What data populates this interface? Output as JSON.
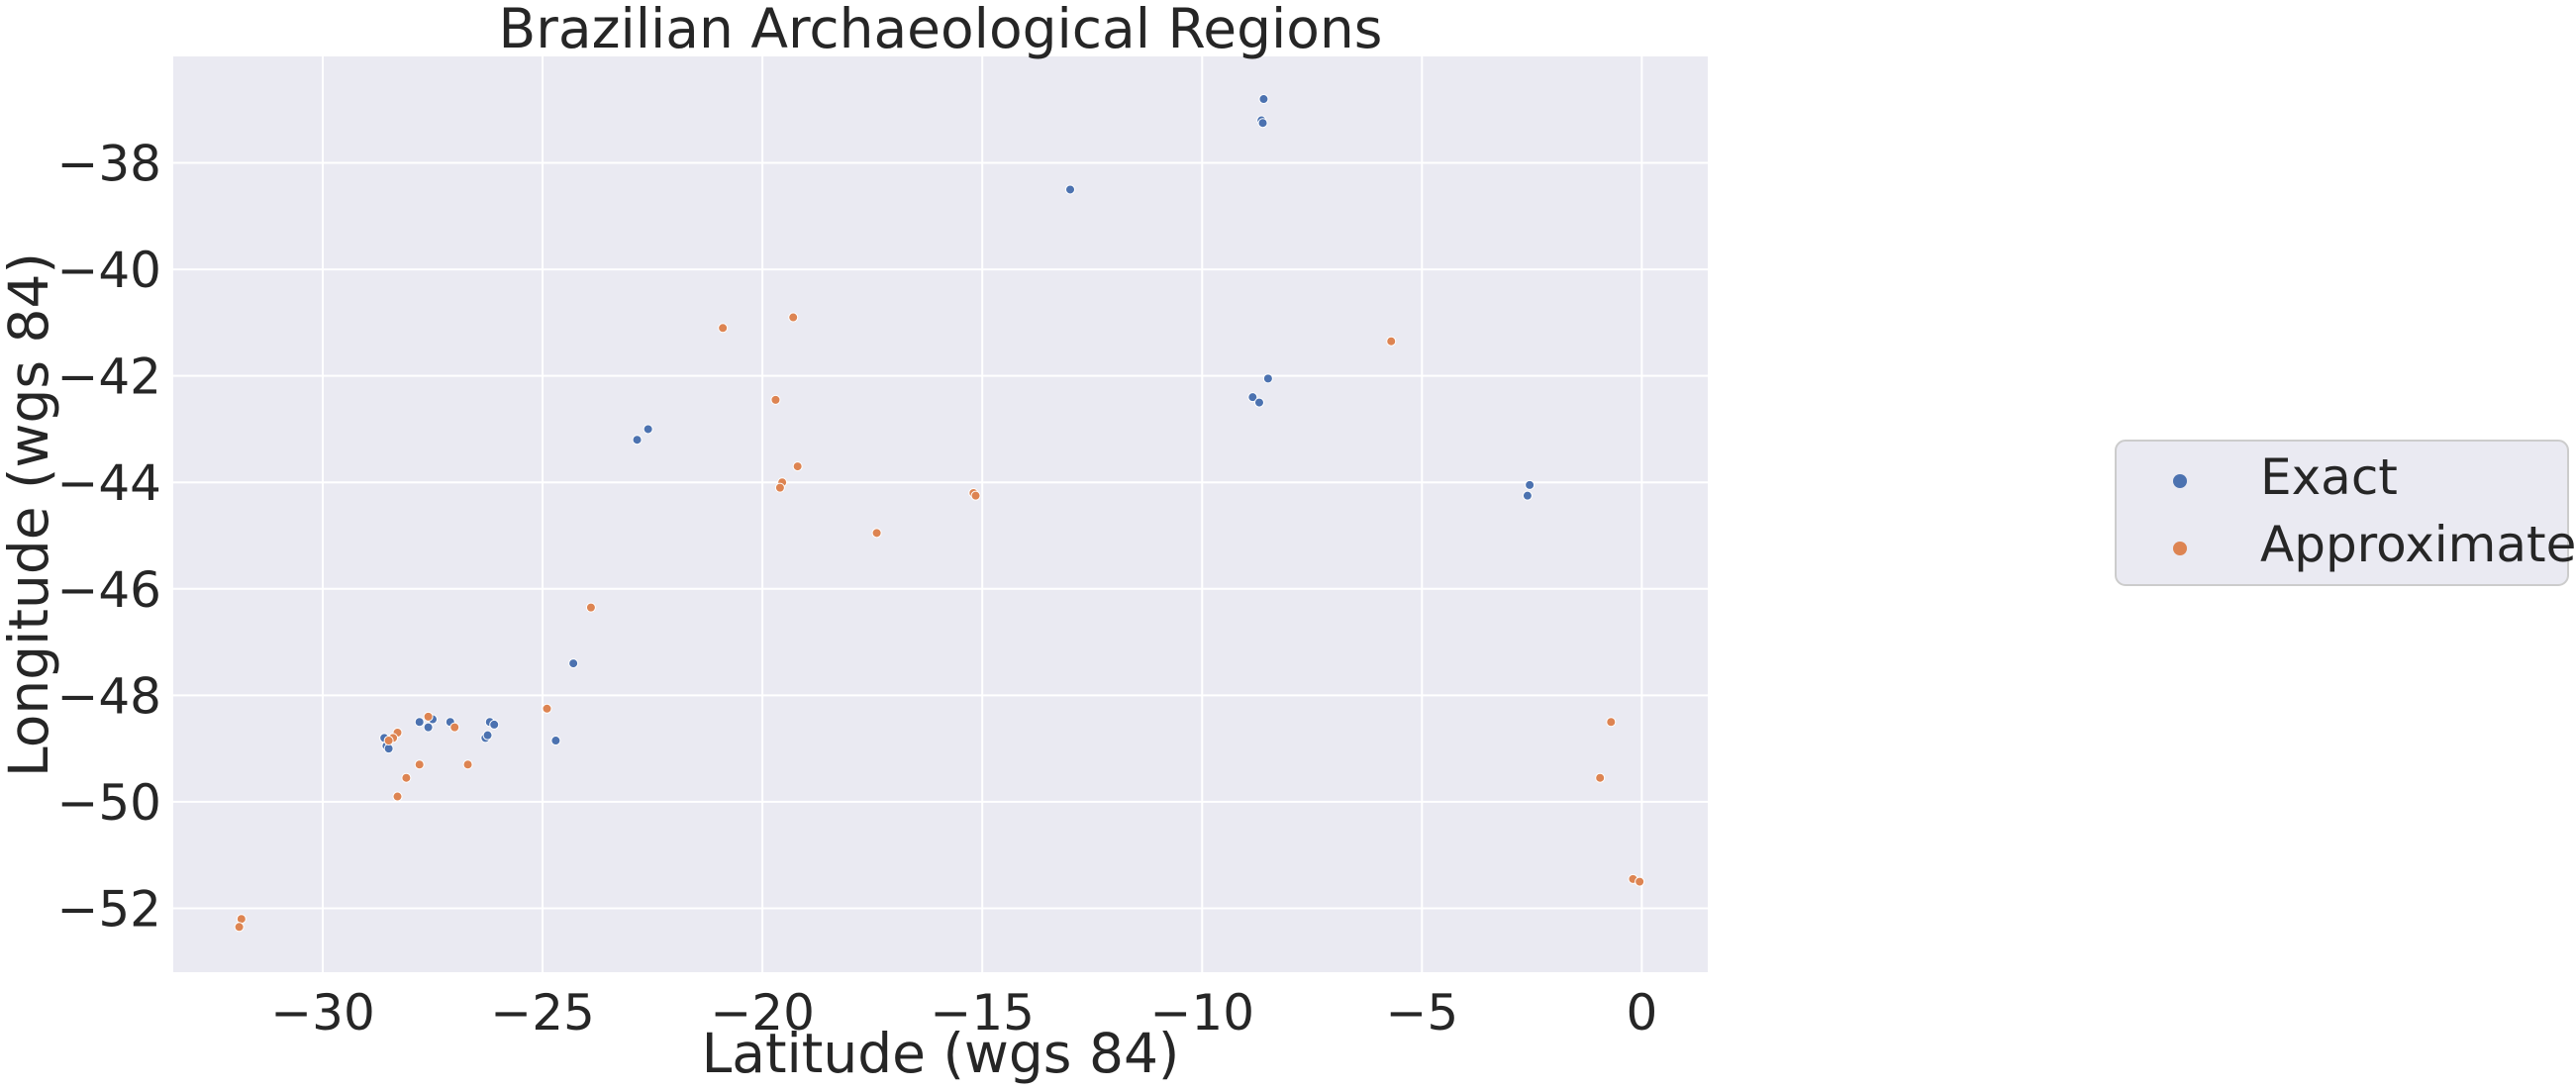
{
  "chart_data": {
    "type": "scatter",
    "title": "Brazilian Archaeological Regions",
    "xlabel": "Latitude (wgs 84)",
    "ylabel": "Longitude (wgs 84)",
    "xlim": [
      -33.4,
      1.5
    ],
    "ylim": [
      -53.2,
      -36.0
    ],
    "xticks": [
      -30,
      -25,
      -20,
      -15,
      -10,
      -5,
      0
    ],
    "yticks": [
      -38,
      -40,
      -42,
      -44,
      -46,
      -48,
      -50,
      -52
    ],
    "xtick_labels": [
      "−30",
      "−25",
      "−20",
      "−15",
      "−10",
      "−5",
      "0"
    ],
    "ytick_labels": [
      "−38",
      "−40",
      "−42",
      "−44",
      "−46",
      "−48",
      "−50",
      "−52"
    ],
    "grid": true,
    "legend_position": "right",
    "series": [
      {
        "name": "Exact",
        "color": "#4c72b0",
        "points": [
          [
            -8.6,
            -36.8
          ],
          [
            -8.65,
            -37.2
          ],
          [
            -8.62,
            -37.25
          ],
          [
            -13.0,
            -38.5
          ],
          [
            -8.85,
            -42.4
          ],
          [
            -8.7,
            -42.5
          ],
          [
            -8.5,
            -42.05
          ],
          [
            -22.6,
            -43.0
          ],
          [
            -22.85,
            -43.2
          ],
          [
            -2.55,
            -44.05
          ],
          [
            -2.6,
            -44.25
          ],
          [
            -24.3,
            -47.4
          ],
          [
            -27.8,
            -48.5
          ],
          [
            -27.6,
            -48.6
          ],
          [
            -27.5,
            -48.45
          ],
          [
            -27.1,
            -48.5
          ],
          [
            -26.2,
            -48.5
          ],
          [
            -26.1,
            -48.55
          ],
          [
            -26.3,
            -48.8
          ],
          [
            -26.25,
            -48.75
          ],
          [
            -24.7,
            -48.85
          ],
          [
            -28.6,
            -48.8
          ],
          [
            -28.55,
            -48.95
          ],
          [
            -28.5,
            -49.0
          ]
        ]
      },
      {
        "name": "Approximate",
        "color": "#dd8452",
        "points": [
          [
            -20.9,
            -41.1
          ],
          [
            -19.3,
            -40.9
          ],
          [
            -5.7,
            -41.35
          ],
          [
            -19.7,
            -42.45
          ],
          [
            -19.2,
            -43.7
          ],
          [
            -19.55,
            -44.0
          ],
          [
            -19.6,
            -44.1
          ],
          [
            -15.2,
            -44.2
          ],
          [
            -15.15,
            -44.25
          ],
          [
            -17.4,
            -44.95
          ],
          [
            -23.9,
            -46.35
          ],
          [
            -24.9,
            -48.25
          ],
          [
            -0.7,
            -48.5
          ],
          [
            -0.95,
            -49.55
          ],
          [
            -28.3,
            -48.7
          ],
          [
            -28.4,
            -48.8
          ],
          [
            -28.5,
            -48.85
          ],
          [
            -27.6,
            -48.4
          ],
          [
            -27.0,
            -48.6
          ],
          [
            -27.8,
            -49.3
          ],
          [
            -26.7,
            -49.3
          ],
          [
            -28.1,
            -49.55
          ],
          [
            -28.3,
            -49.9
          ],
          [
            -31.85,
            -52.2
          ],
          [
            -31.9,
            -52.35
          ],
          [
            -0.2,
            -51.45
          ],
          [
            -0.05,
            -51.5
          ]
        ]
      }
    ]
  }
}
